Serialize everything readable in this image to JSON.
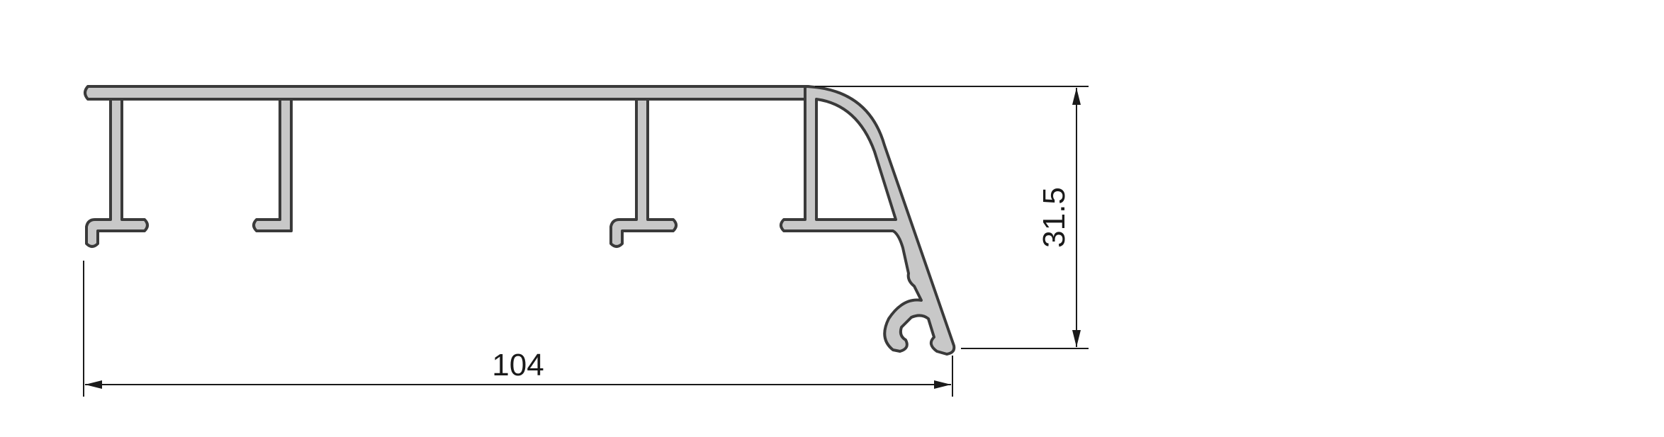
{
  "drawing": {
    "dimensions": {
      "width": {
        "value": 104,
        "label": "104"
      },
      "height": {
        "value": 31.5,
        "label": "31.5"
      }
    },
    "colors": {
      "profile_fill": "#c8c8c8",
      "profile_outline": "#3a3a3a",
      "dimension_ink": "#1a1a1a",
      "background": "#ffffff"
    }
  }
}
